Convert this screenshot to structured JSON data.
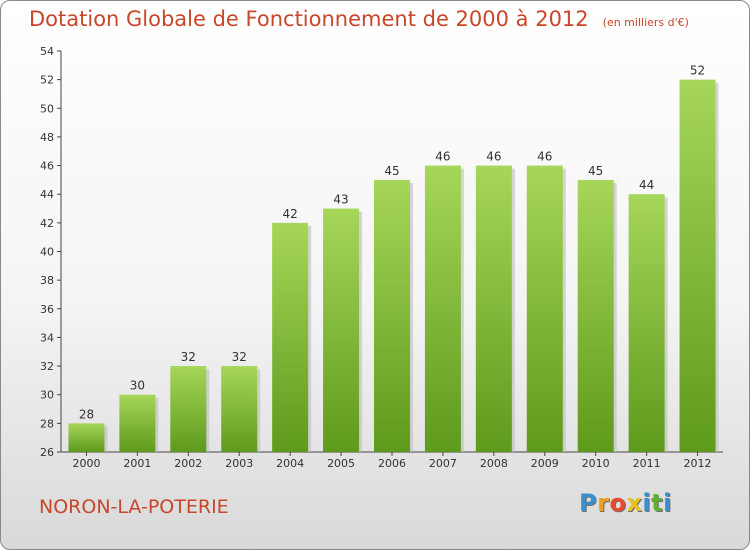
{
  "title": "Dotation Globale de Fonctionnement de 2000 à 2012",
  "unit_note": "(en milliers d'€)",
  "commune": "NORON-LA-POTERIE",
  "logo": {
    "letters": [
      "P",
      "r",
      "o",
      "x",
      "i",
      "t",
      "i"
    ],
    "colors": [
      "#3a8fcf",
      "#e8a21d",
      "#e84a2f",
      "#e8c21d",
      "#3a8fcf",
      "#5fb030",
      "#3a8fcf"
    ]
  },
  "colors": {
    "bar_top": "#a6d65a",
    "bar_bottom": "#5e9a1c",
    "text": "#c8462a"
  },
  "chart_data": {
    "type": "bar",
    "categories": [
      "2000",
      "2001",
      "2002",
      "2003",
      "2004",
      "2005",
      "2006",
      "2007",
      "2008",
      "2009",
      "2010",
      "2011",
      "2012"
    ],
    "values": [
      28,
      30,
      32,
      32,
      42,
      43,
      45,
      46,
      46,
      46,
      45,
      44,
      52
    ],
    "ylim": [
      26,
      54
    ],
    "yticks": [
      26,
      28,
      30,
      32,
      34,
      36,
      38,
      40,
      42,
      44,
      46,
      48,
      50,
      52,
      54
    ],
    "grid": false,
    "data_labels": true
  }
}
